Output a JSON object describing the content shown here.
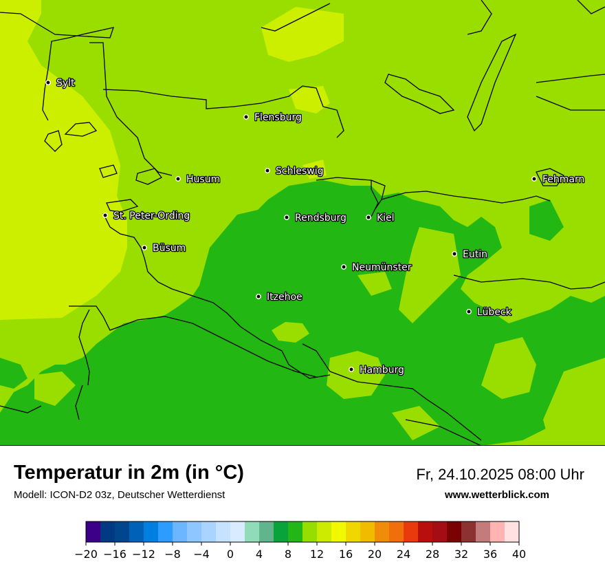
{
  "header": {
    "title": "Temperatur in 2m (in °C)",
    "model": "Modell: ICON-D2 03z, Deutscher Wetterdienst",
    "datetime": "Fr, 24.10.2025 08:00 Uhr",
    "website": "www.wetterblick.com"
  },
  "cities": [
    {
      "name": "Sylt"
    },
    {
      "name": "Flensburg"
    },
    {
      "name": "Schleswig"
    },
    {
      "name": "Husum"
    },
    {
      "name": "Fehmarn"
    },
    {
      "name": "St. Peter-Ording"
    },
    {
      "name": "Rendsburg"
    },
    {
      "name": "Kiel"
    },
    {
      "name": "Büsum"
    },
    {
      "name": "Eutin"
    },
    {
      "name": "Neumünster"
    },
    {
      "name": "Itzehoe"
    },
    {
      "name": "Lübeck"
    },
    {
      "name": "Hamburg"
    }
  ],
  "legend": {
    "colors": [
      "#3b0087",
      "#003a85",
      "#00468f",
      "#0061b8",
      "#007fe3",
      "#2e9bff",
      "#6bb6ff",
      "#8ec7ff",
      "#a9d4ff",
      "#c6e2ff",
      "#d9ebff",
      "#90dcb8",
      "#62b48c",
      "#08a33a",
      "#22b716",
      "#96dd00",
      "#cdeb00",
      "#f0f900",
      "#f1d700",
      "#f1bb00",
      "#f18c0b",
      "#f16f0b",
      "#e83a0b",
      "#b80e0e",
      "#a50d14",
      "#7a0202",
      "#8d3232",
      "#c47b7b",
      "#ffb3b3",
      "#ffe1e1"
    ],
    "ticks": [
      "−20",
      "−16",
      "−12",
      "−8",
      "−4",
      "0",
      "4",
      "8",
      "12",
      "16",
      "20",
      "24",
      "28",
      "32",
      "36",
      "40"
    ]
  },
  "colors": {
    "warmest_zone": "#ccef00",
    "mid_zone": "#9ade00",
    "cool_zone": "#22b712"
  }
}
